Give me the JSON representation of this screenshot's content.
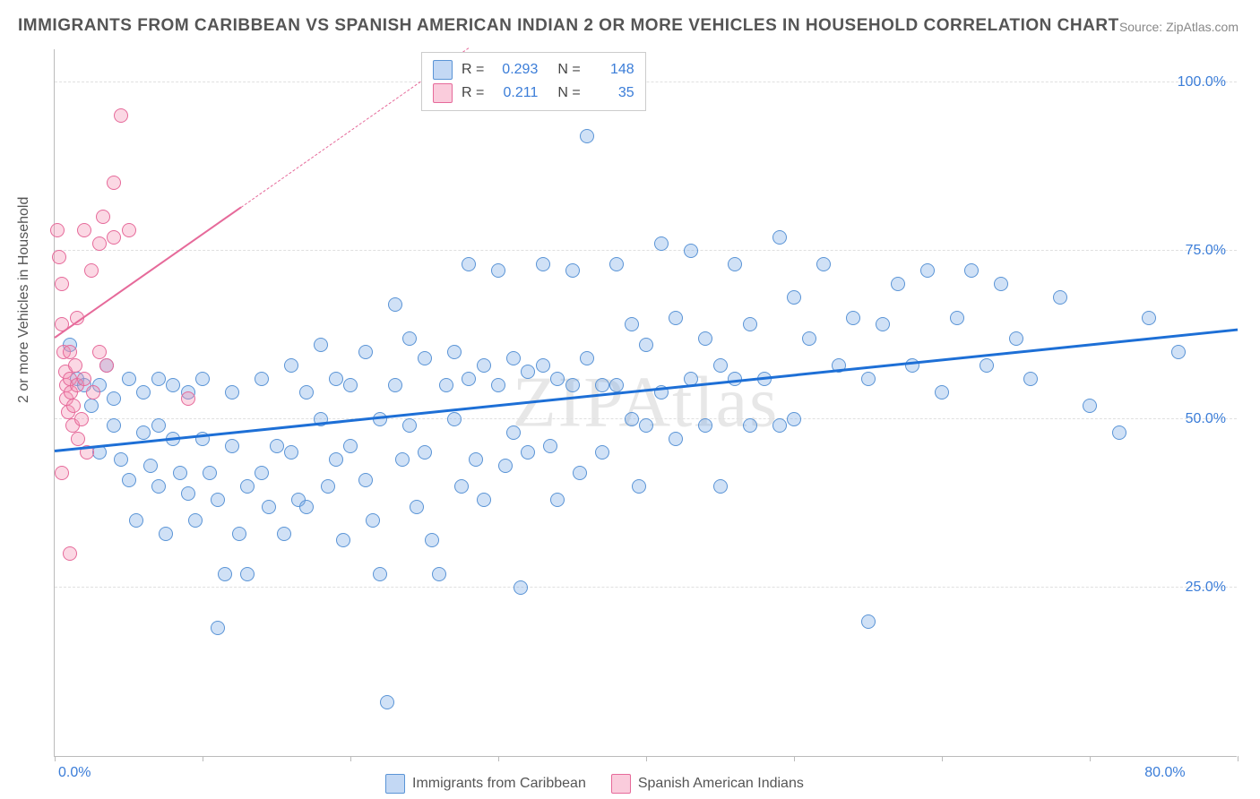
{
  "title": "IMMIGRANTS FROM CARIBBEAN VS SPANISH AMERICAN INDIAN 2 OR MORE VEHICLES IN HOUSEHOLD CORRELATION CHART",
  "source": "Source: ZipAtlas.com",
  "watermark": "ZIPAtlas",
  "ylabel": "2 or more Vehicles in Household",
  "chart": {
    "type": "scatter",
    "background_color": "#ffffff",
    "grid_color": "#e0e0e0",
    "axis_color": "#bbbbbb",
    "tick_label_color": "#3b7dd8",
    "tick_fontsize": 16,
    "xlim": [
      0,
      80
    ],
    "ylim": [
      0,
      105
    ],
    "xticks": [
      0,
      80
    ],
    "xtick_labels": [
      "0.0%",
      "80.0%"
    ],
    "xtick_marks": [
      0,
      10,
      20,
      30,
      40,
      50,
      60,
      70,
      80
    ],
    "yticks": [
      25,
      50,
      75,
      100
    ],
    "ytick_labels": [
      "25.0%",
      "50.0%",
      "75.0%",
      "100.0%"
    ],
    "marker_radius": 8,
    "series": [
      {
        "name": "Immigrants from Caribbean",
        "marker_fill": "rgba(121,169,230,0.35)",
        "marker_stroke": "#5a94d6",
        "trend_color": "#1d6fd6",
        "trend_width": 3,
        "trend_dash": "solid",
        "R": "0.293",
        "N": "148",
        "trend": {
          "x1": 0,
          "y1": 45,
          "x2": 80,
          "y2": 63
        },
        "points": [
          [
            1,
            61
          ],
          [
            1.5,
            56
          ],
          [
            2,
            55
          ],
          [
            2.5,
            52
          ],
          [
            3,
            55
          ],
          [
            3,
            45
          ],
          [
            3.5,
            58
          ],
          [
            4,
            53
          ],
          [
            4,
            49
          ],
          [
            4.5,
            44
          ],
          [
            5,
            56
          ],
          [
            5,
            41
          ],
          [
            5.5,
            35
          ],
          [
            6,
            54
          ],
          [
            6,
            48
          ],
          [
            6.5,
            43
          ],
          [
            7,
            56
          ],
          [
            7,
            49
          ],
          [
            7,
            40
          ],
          [
            7.5,
            33
          ],
          [
            8,
            55
          ],
          [
            8,
            47
          ],
          [
            8.5,
            42
          ],
          [
            9,
            54
          ],
          [
            9,
            39
          ],
          [
            9.5,
            35
          ],
          [
            10,
            56
          ],
          [
            10,
            47
          ],
          [
            10.5,
            42
          ],
          [
            11,
            38
          ],
          [
            11,
            19
          ],
          [
            11.5,
            27
          ],
          [
            12,
            54
          ],
          [
            12,
            46
          ],
          [
            12.5,
            33
          ],
          [
            13,
            40
          ],
          [
            13,
            27
          ],
          [
            14,
            56
          ],
          [
            14,
            42
          ],
          [
            14.5,
            37
          ],
          [
            15,
            46
          ],
          [
            15.5,
            33
          ],
          [
            16,
            58
          ],
          [
            16,
            45
          ],
          [
            16.5,
            38
          ],
          [
            17,
            54
          ],
          [
            17,
            37
          ],
          [
            18,
            61
          ],
          [
            18,
            50
          ],
          [
            18.5,
            40
          ],
          [
            19,
            56
          ],
          [
            19,
            44
          ],
          [
            19.5,
            32
          ],
          [
            20,
            55
          ],
          [
            20,
            46
          ],
          [
            21,
            60
          ],
          [
            21,
            41
          ],
          [
            21.5,
            35
          ],
          [
            22,
            50
          ],
          [
            22,
            27
          ],
          [
            22.5,
            8
          ],
          [
            23,
            67
          ],
          [
            23,
            55
          ],
          [
            23.5,
            44
          ],
          [
            24,
            62
          ],
          [
            24,
            49
          ],
          [
            24.5,
            37
          ],
          [
            25,
            59
          ],
          [
            25,
            45
          ],
          [
            25.5,
            32
          ],
          [
            26,
            27
          ],
          [
            26.5,
            55
          ],
          [
            27,
            60
          ],
          [
            27,
            50
          ],
          [
            27.5,
            40
          ],
          [
            28,
            73
          ],
          [
            28,
            56
          ],
          [
            28.5,
            44
          ],
          [
            29,
            58
          ],
          [
            29,
            38
          ],
          [
            30,
            72
          ],
          [
            30,
            55
          ],
          [
            30.5,
            43
          ],
          [
            31,
            59
          ],
          [
            31,
            48
          ],
          [
            31.5,
            25
          ],
          [
            32,
            57
          ],
          [
            32,
            45
          ],
          [
            33,
            73
          ],
          [
            33,
            58
          ],
          [
            33.5,
            46
          ],
          [
            34,
            56
          ],
          [
            34,
            38
          ],
          [
            35,
            72
          ],
          [
            35,
            55
          ],
          [
            35.5,
            42
          ],
          [
            36,
            92
          ],
          [
            36,
            59
          ],
          [
            37,
            55
          ],
          [
            37,
            45
          ],
          [
            38,
            73
          ],
          [
            38,
            55
          ],
          [
            39,
            64
          ],
          [
            39,
            50
          ],
          [
            39.5,
            40
          ],
          [
            40,
            61
          ],
          [
            40,
            49
          ],
          [
            41,
            76
          ],
          [
            41,
            54
          ],
          [
            42,
            65
          ],
          [
            42,
            47
          ],
          [
            43,
            75
          ],
          [
            43,
            56
          ],
          [
            44,
            62
          ],
          [
            44,
            49
          ],
          [
            45,
            58
          ],
          [
            45,
            40
          ],
          [
            46,
            73
          ],
          [
            46,
            56
          ],
          [
            47,
            64
          ],
          [
            47,
            49
          ],
          [
            48,
            56
          ],
          [
            49,
            77
          ],
          [
            49,
            49
          ],
          [
            50,
            68
          ],
          [
            50,
            50
          ],
          [
            51,
            62
          ],
          [
            52,
            73
          ],
          [
            53,
            58
          ],
          [
            54,
            65
          ],
          [
            55,
            56
          ],
          [
            56,
            64
          ],
          [
            57,
            70
          ],
          [
            58,
            58
          ],
          [
            59,
            72
          ],
          [
            60,
            54
          ],
          [
            61,
            65
          ],
          [
            62,
            72
          ],
          [
            63,
            58
          ],
          [
            64,
            70
          ],
          [
            65,
            62
          ],
          [
            66,
            56
          ],
          [
            68,
            68
          ],
          [
            70,
            52
          ],
          [
            72,
            48
          ],
          [
            74,
            65
          ],
          [
            76,
            60
          ],
          [
            55,
            20
          ]
        ]
      },
      {
        "name": "Spanish American Indians",
        "marker_fill": "rgba(244,143,177,0.35)",
        "marker_stroke": "#e66a9a",
        "trend_color": "#e66a9a",
        "trend_width": 2,
        "trend_dash": "solid_to_dash",
        "R": "0.211",
        "N": "35",
        "trend": {
          "x1": 0,
          "y1": 62,
          "x2": 28,
          "y2": 105
        },
        "points": [
          [
            0.2,
            78
          ],
          [
            0.3,
            74
          ],
          [
            0.5,
            70
          ],
          [
            0.5,
            64
          ],
          [
            0.6,
            60
          ],
          [
            0.7,
            57
          ],
          [
            0.8,
            55
          ],
          [
            0.8,
            53
          ],
          [
            0.9,
            51
          ],
          [
            1,
            56
          ],
          [
            1,
            60
          ],
          [
            1.1,
            54
          ],
          [
            1.2,
            49
          ],
          [
            1.3,
            52
          ],
          [
            1.4,
            58
          ],
          [
            1.5,
            55
          ],
          [
            1.6,
            47
          ],
          [
            1.8,
            50
          ],
          [
            2,
            78
          ],
          [
            2,
            56
          ],
          [
            2.2,
            45
          ],
          [
            2.5,
            72
          ],
          [
            2.6,
            54
          ],
          [
            3,
            76
          ],
          [
            3,
            60
          ],
          [
            3.3,
            80
          ],
          [
            3.5,
            58
          ],
          [
            4,
            77
          ],
          [
            4,
            85
          ],
          [
            4.5,
            95
          ],
          [
            5,
            78
          ],
          [
            1,
            30
          ],
          [
            0.5,
            42
          ],
          [
            9,
            53
          ],
          [
            1.5,
            65
          ]
        ]
      }
    ]
  },
  "legend_top": {
    "rows": [
      {
        "swatch_fill": "rgba(121,169,230,0.45)",
        "swatch_stroke": "#5a94d6",
        "R_label": "R =",
        "R": "0.293",
        "N_label": "N =",
        "N": "148"
      },
      {
        "swatch_fill": "rgba(244,143,177,0.45)",
        "swatch_stroke": "#e66a9a",
        "R_label": "R =",
        "R": "0.211",
        "N_label": "N =",
        "N": "35"
      }
    ]
  },
  "legend_bottom": {
    "items": [
      {
        "swatch_fill": "rgba(121,169,230,0.45)",
        "swatch_stroke": "#5a94d6",
        "label": "Immigrants from Caribbean"
      },
      {
        "swatch_fill": "rgba(244,143,177,0.45)",
        "swatch_stroke": "#e66a9a",
        "label": "Spanish American Indians"
      }
    ]
  }
}
